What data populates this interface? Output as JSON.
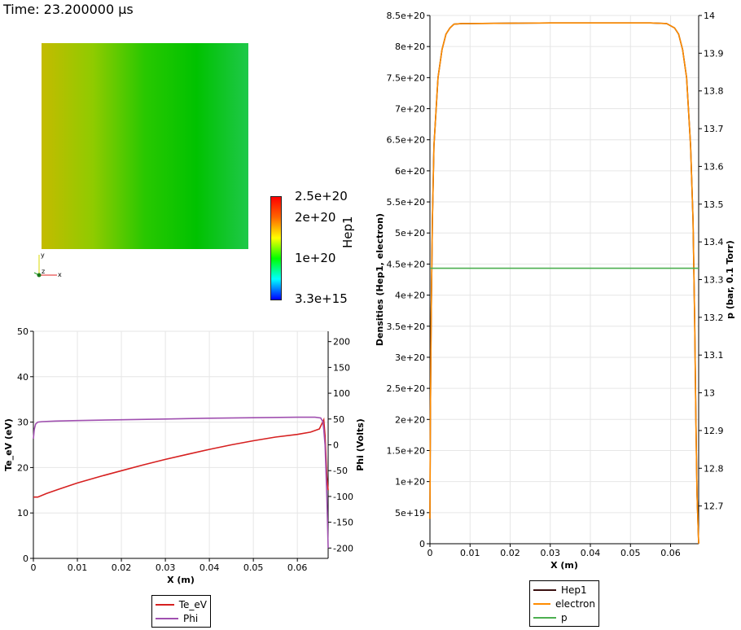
{
  "time_label": "Time: 23.200000 µs",
  "field_view": {
    "gradient_colors": [
      "#c4bb00",
      "#8fcb00",
      "#28c800",
      "#00c200",
      "#1fc84a"
    ],
    "colorbar": {
      "title": "Hep1",
      "labels": [
        "2.5e+20",
        "2e+20",
        "1e+20",
        "3.3e+15"
      ],
      "colors": [
        "#ff0000",
        "#ff6600",
        "#ffff00",
        "#00ff00",
        "#00ffff",
        "#0000ff"
      ]
    },
    "axes_triad": {
      "x": "x",
      "y": "y",
      "z": "z"
    }
  },
  "chart_data": [
    {
      "type": "line",
      "xlabel": "X (m)",
      "ylabel": "Te_eV (eV)",
      "y2label": "Phi (Volts)",
      "xlim": [
        0,
        0.067
      ],
      "ylim": [
        0,
        50
      ],
      "y2lim": [
        -220,
        220
      ],
      "x_ticks": [
        "0",
        "0.01",
        "0.02",
        "0.03",
        "0.04",
        "0.05",
        "0.06"
      ],
      "y_ticks": [
        "0",
        "10",
        "20",
        "30",
        "40",
        "50"
      ],
      "y2_ticks": [
        "-200",
        "-150",
        "-100",
        "-50",
        "0",
        "50",
        "100",
        "150",
        "200"
      ],
      "grid": true,
      "legend": {
        "placement": "bottom-center"
      },
      "series": [
        {
          "name": "Te_eV",
          "color": "#d62020",
          "axis": "left",
          "x": [
            0,
            0.001,
            0.003,
            0.006,
            0.01,
            0.015,
            0.02,
            0.025,
            0.03,
            0.035,
            0.04,
            0.045,
            0.05,
            0.055,
            0.06,
            0.063,
            0.065,
            0.066,
            0.0663,
            0.0667,
            0.067
          ],
          "y": [
            13.5,
            13.5,
            14.3,
            15.3,
            16.6,
            18.0,
            19.3,
            20.6,
            21.8,
            22.9,
            24.0,
            25.0,
            25.9,
            26.7,
            27.3,
            27.8,
            28.5,
            30.5,
            27.0,
            18.0,
            15.0
          ]
        },
        {
          "name": "Phi",
          "color": "#a050b0",
          "axis": "right",
          "x": [
            0,
            0.0002,
            0.0005,
            0.001,
            0.002,
            0.005,
            0.01,
            0.02,
            0.03,
            0.04,
            0.05,
            0.06,
            0.064,
            0.0653,
            0.0658,
            0.066,
            0.0663,
            0.0667,
            0.067
          ],
          "y": [
            12,
            30,
            40,
            44,
            45,
            46,
            47,
            48.5,
            50,
            51.5,
            52.5,
            53.5,
            53.5,
            52,
            45,
            30,
            0,
            -100,
            -200
          ]
        }
      ]
    },
    {
      "type": "line",
      "xlabel": "X (m)",
      "ylabel": "Densities (Hep1, electron)",
      "y2label": "p (bar, 0.1 Torr)",
      "xlim": [
        0,
        0.067
      ],
      "ylim": [
        0,
        8.5e+20
      ],
      "y2lim": [
        12.6,
        14.0
      ],
      "x_ticks": [
        "0",
        "0.01",
        "0.02",
        "0.03",
        "0.04",
        "0.05",
        "0.06"
      ],
      "y_ticks": [
        "0",
        "5e+19",
        "1e+20",
        "1.5e+20",
        "2e+20",
        "2.5e+20",
        "3e+20",
        "3.5e+20",
        "4e+20",
        "4.5e+20",
        "5e+20",
        "5.5e+20",
        "6e+20",
        "6.5e+20",
        "7e+20",
        "7.5e+20",
        "8e+20",
        "8.5e+20"
      ],
      "y2_ticks": [
        "12.7",
        "12.8",
        "12.9",
        "13",
        "13.1",
        "13.2",
        "13.3",
        "13.4",
        "13.5",
        "13.6",
        "13.7",
        "13.8",
        "13.9",
        "14"
      ],
      "grid": true,
      "legend": {
        "placement": "bottom-center"
      },
      "series": [
        {
          "name": "Hep1",
          "color": "#3a1010",
          "axis": "left",
          "x": [
            0,
            0.0001,
            0.0003,
            0.0006,
            0.001,
            0.002,
            0.003,
            0.004,
            0.005,
            0.006,
            0.008,
            0.01,
            0.03,
            0.055,
            0.059,
            0.061,
            0.062,
            0.063,
            0.064,
            0.065,
            0.0656,
            0.066,
            0.0663,
            0.0666,
            0.067
          ],
          "y": [
            4e+19,
            2e+20,
            3.6e+20,
            5.2e+20,
            6.4e+20,
            7.5e+20,
            7.95e+20,
            8.2e+20,
            8.3e+20,
            8.36e+20,
            8.37e+20,
            8.37e+20,
            8.38e+20,
            8.38e+20,
            8.37e+20,
            8.3e+20,
            8.2e+20,
            7.95e+20,
            7.5e+20,
            6.4e+20,
            5.2e+20,
            3.6e+20,
            2e+20,
            8e+19,
            0.0
          ]
        },
        {
          "name": "electron",
          "color": "#ff8c00",
          "axis": "left",
          "x": [
            0,
            0.0001,
            0.0003,
            0.0006,
            0.001,
            0.002,
            0.003,
            0.004,
            0.005,
            0.006,
            0.008,
            0.01,
            0.03,
            0.055,
            0.059,
            0.061,
            0.062,
            0.063,
            0.064,
            0.065,
            0.0656,
            0.066,
            0.0663,
            0.0666,
            0.067
          ],
          "y": [
            4e+19,
            2e+20,
            3.6e+20,
            5.2e+20,
            6.4e+20,
            7.5e+20,
            7.95e+20,
            8.2e+20,
            8.3e+20,
            8.36e+20,
            8.37e+20,
            8.37e+20,
            8.38e+20,
            8.38e+20,
            8.37e+20,
            8.3e+20,
            8.2e+20,
            7.95e+20,
            7.5e+20,
            6.4e+20,
            5.2e+20,
            3.6e+20,
            2e+20,
            8e+19,
            0.0
          ]
        },
        {
          "name": "p",
          "color": "#4caf50",
          "axis": "right",
          "x": [
            0,
            0.067
          ],
          "y": [
            13.33,
            13.33
          ]
        }
      ]
    }
  ]
}
